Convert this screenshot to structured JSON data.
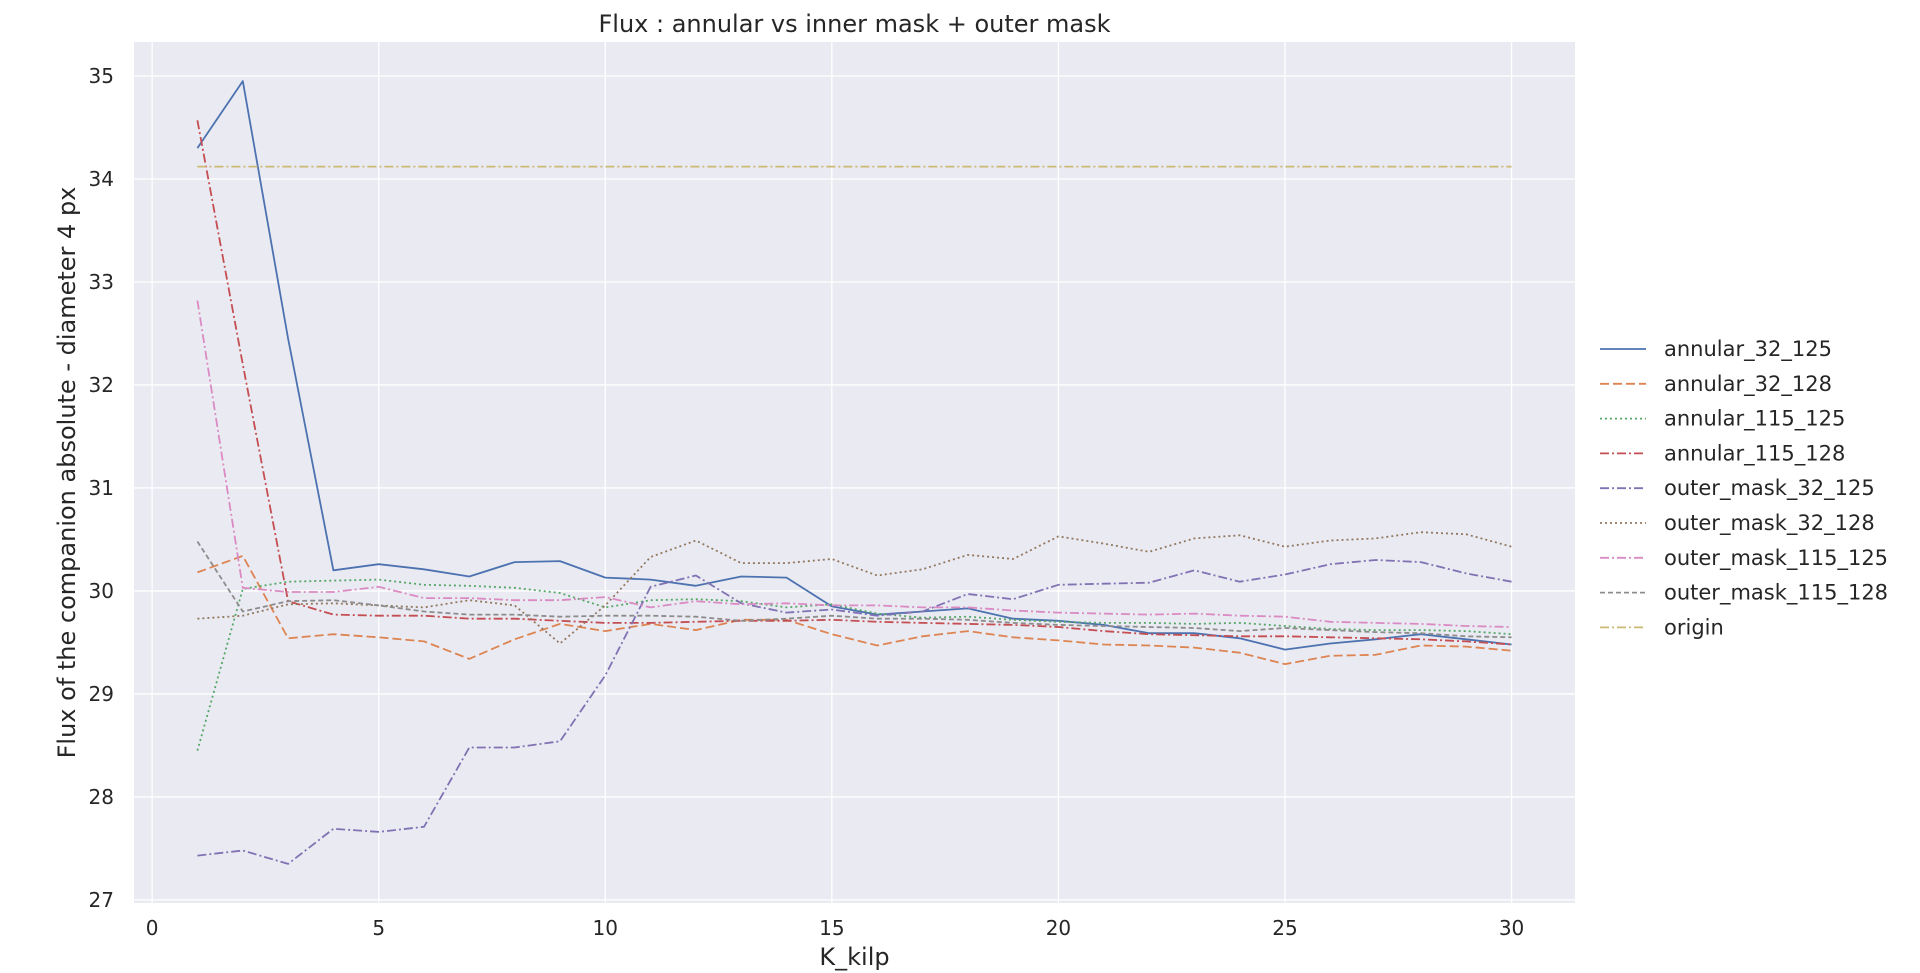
{
  "chart_data": {
    "type": "line",
    "title": "Flux : annular vs inner mask + outer mask",
    "xlabel": "K_kilp",
    "ylabel": "Flux of the companion absolute - diameter 4 px",
    "xlim": [
      -0.4,
      31.4
    ],
    "ylim": [
      26.97,
      35.33
    ],
    "xticks": [
      0,
      5,
      10,
      15,
      20,
      25,
      30
    ],
    "yticks": [
      27,
      28,
      29,
      30,
      31,
      32,
      33,
      34,
      35
    ],
    "grid": true,
    "legend_position": "center-right",
    "background": "#eaeaf2",
    "x": [
      1,
      2,
      3,
      4,
      5,
      6,
      7,
      8,
      9,
      10,
      11,
      12,
      13,
      14,
      15,
      16,
      17,
      18,
      19,
      20,
      21,
      22,
      23,
      24,
      25,
      26,
      27,
      28,
      29,
      30
    ],
    "series": [
      {
        "name": "annular_32_125",
        "color": "#4c72b0",
        "dash": "",
        "values": [
          34.3,
          34.95,
          32.45,
          30.2,
          30.26,
          30.21,
          30.14,
          30.28,
          30.29,
          30.13,
          30.11,
          30.05,
          30.14,
          30.13,
          29.85,
          29.77,
          29.8,
          29.83,
          29.73,
          29.71,
          29.67,
          29.59,
          29.59,
          29.54,
          29.43,
          29.49,
          29.53,
          29.58,
          29.53,
          29.48
        ]
      },
      {
        "name": "annular_32_128",
        "color": "#dd8452",
        "dash": "9,4",
        "values": [
          30.18,
          30.34,
          29.54,
          29.58,
          29.55,
          29.51,
          29.34,
          29.53,
          29.68,
          29.61,
          29.68,
          29.62,
          29.72,
          29.72,
          29.58,
          29.47,
          29.56,
          29.61,
          29.55,
          29.52,
          29.48,
          29.47,
          29.45,
          29.4,
          29.29,
          29.37,
          29.38,
          29.47,
          29.46,
          29.42
        ]
      },
      {
        "name": "annular_115_125",
        "color": "#55a868",
        "dash": "2,3",
        "values": [
          28.45,
          30.02,
          30.09,
          30.1,
          30.11,
          30.06,
          30.05,
          30.03,
          29.98,
          29.84,
          29.91,
          29.92,
          29.9,
          29.84,
          29.87,
          29.78,
          29.74,
          29.75,
          29.72,
          29.7,
          29.69,
          29.69,
          29.68,
          29.69,
          29.66,
          29.63,
          29.62,
          29.62,
          29.61,
          29.58
        ]
      },
      {
        "name": "annular_115_128",
        "color": "#c44e52",
        "dash": "9,3,2,3",
        "values": [
          34.57,
          32.2,
          29.9,
          29.77,
          29.76,
          29.76,
          29.73,
          29.73,
          29.71,
          29.69,
          29.69,
          29.7,
          29.71,
          29.71,
          29.72,
          29.7,
          29.69,
          29.68,
          29.67,
          29.65,
          29.61,
          29.58,
          29.57,
          29.56,
          29.56,
          29.55,
          29.54,
          29.53,
          29.51,
          29.48
        ]
      },
      {
        "name": "outer_mask_32_125",
        "color": "#8172b3",
        "dash": "9,3,2,3",
        "values": [
          27.43,
          27.48,
          27.35,
          27.69,
          27.66,
          27.71,
          28.48,
          28.48,
          28.54,
          29.18,
          30.04,
          30.15,
          29.88,
          29.79,
          29.82,
          29.76,
          29.8,
          29.97,
          29.92,
          30.06,
          30.07,
          30.08,
          30.2,
          30.09,
          30.16,
          30.26,
          30.3,
          30.28,
          30.17,
          30.09
        ]
      },
      {
        "name": "outer_mask_32_128",
        "color": "#937860",
        "dash": "2,3",
        "values": [
          29.73,
          29.76,
          29.87,
          29.88,
          29.86,
          29.84,
          29.91,
          29.86,
          29.49,
          29.86,
          30.33,
          30.49,
          30.27,
          30.27,
          30.31,
          30.15,
          30.21,
          30.35,
          30.31,
          30.53,
          30.46,
          30.38,
          30.51,
          30.54,
          30.43,
          30.49,
          30.51,
          30.57,
          30.55,
          30.43
        ]
      },
      {
        "name": "outer_mask_115_125",
        "color": "#da8bc3",
        "dash": "9,3,2,3",
        "values": [
          32.82,
          30.03,
          29.99,
          29.99,
          30.04,
          29.93,
          29.93,
          29.91,
          29.91,
          29.94,
          29.84,
          29.9,
          29.87,
          29.88,
          29.86,
          29.86,
          29.84,
          29.84,
          29.81,
          29.79,
          29.78,
          29.77,
          29.78,
          29.76,
          29.75,
          29.7,
          29.69,
          29.68,
          29.66,
          29.65
        ]
      },
      {
        "name": "outer_mask_115_128",
        "color": "#8c8c8c",
        "dash": "5,3",
        "values": [
          30.48,
          29.8,
          29.9,
          29.91,
          29.86,
          29.8,
          29.77,
          29.77,
          29.75,
          29.76,
          29.76,
          29.75,
          29.71,
          29.73,
          29.76,
          29.73,
          29.73,
          29.72,
          29.69,
          29.67,
          29.66,
          29.65,
          29.64,
          29.61,
          29.64,
          29.62,
          29.6,
          29.59,
          29.56,
          29.55
        ]
      },
      {
        "name": "origin",
        "color": "#ccb974",
        "dash": "9,3,2,3",
        "values": [
          34.12,
          34.12,
          34.12,
          34.12,
          34.12,
          34.12,
          34.12,
          34.12,
          34.12,
          34.12,
          34.12,
          34.12,
          34.12,
          34.12,
          34.12,
          34.12,
          34.12,
          34.12,
          34.12,
          34.12,
          34.12,
          34.12,
          34.12,
          34.12,
          34.12,
          34.12,
          34.12,
          34.12,
          34.12,
          34.12
        ]
      }
    ]
  }
}
